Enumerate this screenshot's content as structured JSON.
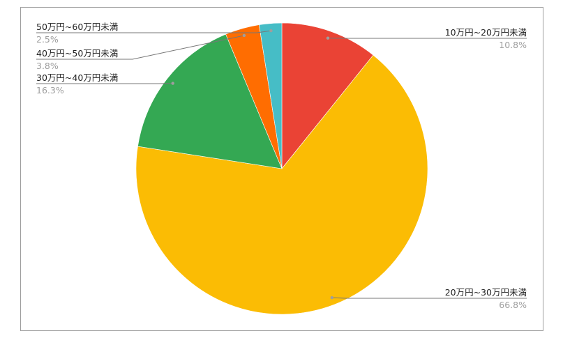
{
  "chart_data": {
    "type": "pie",
    "start_angle_deg": 0,
    "direction": "clockwise",
    "legend": "none (leader-line labels)",
    "slices": [
      {
        "label": "10万円~20万円未満",
        "value": 10.8,
        "value_label": "10.8%",
        "color": "#ea4335"
      },
      {
        "label": "20万円~30万円未満",
        "value": 66.8,
        "value_label": "66.8%",
        "color": "#fbbc04"
      },
      {
        "label": "30万円~40万円未満",
        "value": 16.3,
        "value_label": "16.3%",
        "color": "#34a853"
      },
      {
        "label": "40万円~50万円未満",
        "value": 3.8,
        "value_label": "3.8%",
        "color": "#ff6d01"
      },
      {
        "label": "50万円~60万円未満",
        "value": 2.5,
        "value_label": "2.5%",
        "color": "#46bdc6"
      }
    ]
  }
}
